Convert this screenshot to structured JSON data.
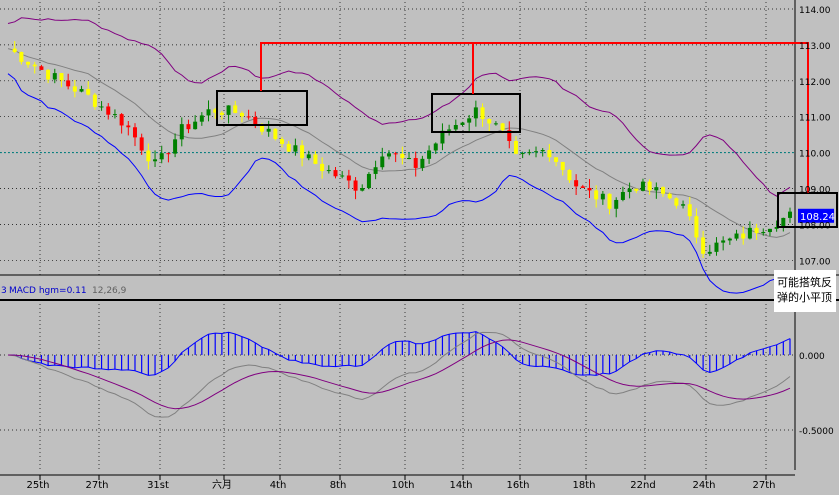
{
  "colors": {
    "background": "#c0c0c0",
    "grid": "#000000",
    "candle_up": "#008000",
    "candle_down": "#ffff00",
    "candle_red": "#ff0000",
    "bollinger_upper": "#800080",
    "bollinger_lower": "#0000ff",
    "ma": "#808080",
    "callout": "#ff0000",
    "macd_hist": "#0000ff",
    "macd_line": "#808080",
    "signal_line": "#800080",
    "last_price_box": "#0000ff",
    "refline": "#008080"
  },
  "chart_data": [
    {
      "type": "candlestick",
      "title": "",
      "ylim": [
        106.7,
        114.2
      ],
      "y_ticks": [
        "114.00",
        "113.00",
        "112.00",
        "111.00",
        "110.00",
        "109.00",
        "108.00",
        "107.00"
      ],
      "dotted_reference_level": 110.0,
      "last_price": "108.24",
      "x_tick_labels": [
        "25th",
        "27th",
        "31st",
        "六月",
        "4th",
        "8th",
        "10th",
        "14th",
        "16th",
        "18th",
        "22nd",
        "24th",
        "27th"
      ],
      "annotation": [
        "可能搭筑反",
        "弹的小平顶"
      ],
      "candles_approx": [
        {
          "x": "25th",
          "o": 112.9,
          "h": 113.3,
          "l": 112.5,
          "c": 112.7
        },
        {
          "x": "27th",
          "o": 111.9,
          "h": 112.2,
          "l": 111.2,
          "c": 111.5
        },
        {
          "x": "31st",
          "o": 109.8,
          "h": 110.2,
          "l": 109.2,
          "c": 109.5
        },
        {
          "x": "六月",
          "o": 110.6,
          "h": 111.5,
          "l": 110.0,
          "c": 111.2
        },
        {
          "x": "4th",
          "o": 111.2,
          "h": 111.4,
          "l": 110.8,
          "c": 111.1
        },
        {
          "x": "8th",
          "o": 109.6,
          "h": 109.9,
          "l": 108.9,
          "c": 109.2
        },
        {
          "x": "10th",
          "o": 109.7,
          "h": 110.5,
          "l": 109.2,
          "c": 110.3
        },
        {
          "x": "14th",
          "o": 111.0,
          "h": 111.4,
          "l": 110.8,
          "c": 111.2
        },
        {
          "x": "16th",
          "o": 109.7,
          "h": 110.2,
          "l": 109.4,
          "c": 110.0
        },
        {
          "x": "18th",
          "o": 108.8,
          "h": 109.4,
          "l": 108.5,
          "c": 108.9
        },
        {
          "x": "22nd",
          "o": 108.8,
          "h": 109.4,
          "l": 108.5,
          "c": 109.2
        },
        {
          "x": "24th",
          "o": 107.5,
          "h": 108.0,
          "l": 107.0,
          "c": 107.2
        },
        {
          "x": "27th",
          "o": 107.8,
          "h": 108.5,
          "l": 107.6,
          "c": 108.24
        }
      ]
    },
    {
      "type": "histogram",
      "title": "MACD hgm=0.11",
      "params": "12,26,9",
      "label_prefix": "3",
      "ylim": [
        -0.6,
        0.3
      ],
      "y_ticks": [
        "0.000",
        "-0.5000"
      ],
      "x_tick_labels": [
        "25th",
        "27th",
        "31st",
        "六月",
        "4th",
        "8th",
        "10th",
        "14th",
        "16th",
        "18th",
        "22nd",
        "24th",
        "27th"
      ]
    }
  ]
}
